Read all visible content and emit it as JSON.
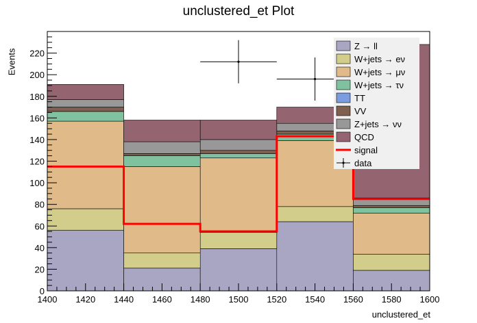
{
  "chart_data": {
    "type": "bar",
    "title": "unclustered_et Plot",
    "xlabel": "unclustered_et",
    "ylabel": "Events",
    "xlim": [
      1400,
      1600
    ],
    "ylim": [
      0,
      240
    ],
    "bin_edges": [
      1400,
      1440,
      1480,
      1520,
      1560,
      1600
    ],
    "x_ticks": [
      1400,
      1420,
      1440,
      1460,
      1480,
      1500,
      1520,
      1540,
      1560,
      1580,
      1600
    ],
    "y_ticks": [
      0,
      20,
      40,
      60,
      80,
      100,
      120,
      140,
      160,
      180,
      200,
      220
    ],
    "stacked_series": [
      {
        "name": "Z → ll",
        "color": "#a9a6c3",
        "values": [
          56,
          21,
          39,
          64,
          19
        ]
      },
      {
        "name": "W+jets → eν",
        "color": "#d3cd8b",
        "values": [
          20,
          14,
          15,
          14,
          15
        ]
      },
      {
        "name": "W+jets → μν",
        "color": "#e0bb89",
        "values": [
          81,
          80,
          69,
          61,
          38
        ]
      },
      {
        "name": "W+jets → τν",
        "color": "#80c19f",
        "values": [
          9,
          10,
          4,
          6,
          5
        ]
      },
      {
        "name": "TT",
        "color": "#7b9de0",
        "values": [
          0,
          0,
          0,
          0,
          0
        ]
      },
      {
        "name": "VV",
        "color": "#7e5f50",
        "values": [
          4,
          2,
          3,
          3,
          2
        ]
      },
      {
        "name": "Z+jets → νν",
        "color": "#989898",
        "values": [
          7,
          11,
          10,
          7,
          7
        ]
      },
      {
        "name": "QCD",
        "color": "#946470",
        "values": [
          14,
          20,
          18,
          15,
          142
        ]
      }
    ],
    "signal": {
      "name": "signal",
      "color": "#ff0000",
      "values": [
        115,
        62,
        55,
        143,
        85
      ]
    },
    "data_points": {
      "name": "data",
      "x": [
        1500,
        1540
      ],
      "y": [
        212,
        196
      ],
      "x_err": [
        20,
        20
      ],
      "y_err": [
        20,
        20
      ]
    },
    "legend_position": "top-right",
    "grid": false
  }
}
